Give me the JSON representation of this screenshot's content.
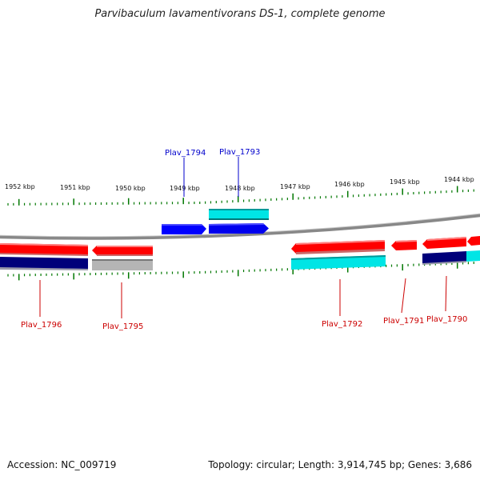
{
  "title": "Parvibaculum lavamentivorans DS-1, complete genome",
  "accession": "Accession: NC_009719",
  "topology": "Topology: circular; Length: 3,914,745 bp; Genes: 3,686",
  "ticks": [
    "1952 kbp",
    "1951 kbp",
    "1950 kbp",
    "1949 kbp",
    "1948 kbp",
    "1947 kbp",
    "1946 kbp",
    "1945 kbp",
    "1944 kbp"
  ],
  "genes_top": [
    {
      "name": "Plav_1794",
      "color": "#0000cc"
    },
    {
      "name": "Plav_1793",
      "color": "#0000cc"
    }
  ],
  "genes_bottom": [
    {
      "name": "Plav_1796",
      "color": "#cc0000"
    },
    {
      "name": "Plav_1795",
      "color": "#cc0000"
    },
    {
      "name": "Plav_1792",
      "color": "#cc0000"
    },
    {
      "name": "Plav_1791",
      "color": "#cc0000"
    },
    {
      "name": "Plav_1790",
      "color": "#cc0000"
    }
  ],
  "colors": {
    "red": "#ff0000",
    "blue": "#0000ff",
    "cyan": "#00e5e5",
    "navy": "#00007a",
    "gray": "#b5b5b5",
    "tick": "#007700",
    "backbone": "#888888"
  }
}
